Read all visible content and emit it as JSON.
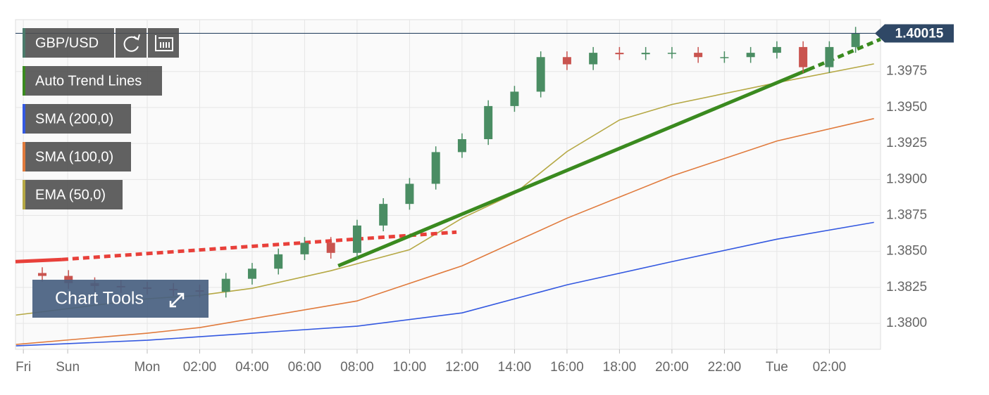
{
  "chart_data": {
    "type": "candlestick",
    "symbol": "GBP/USD",
    "tools_label": "Chart Tools",
    "x": [
      -4,
      -3,
      -2,
      -1,
      0,
      1,
      2,
      3,
      4,
      5,
      6,
      7,
      8,
      9,
      10,
      11,
      12,
      13,
      14,
      15,
      16,
      17,
      18,
      19,
      20,
      21,
      22,
      23,
      24,
      25,
      26,
      27
    ],
    "open": [
      1.3835,
      1.3833,
      1.3828,
      1.3826,
      1.3825,
      1.3824,
      1.3823,
      1.3822,
      1.3831,
      1.3838,
      1.3848,
      1.3856,
      1.3849,
      1.3868,
      1.3883,
      1.3897,
      1.3919,
      1.3928,
      1.3951,
      1.3961,
      1.3985,
      1.398,
      1.3988,
      1.3987,
      1.3988,
      1.3988,
      1.3985,
      1.3985,
      1.3988,
      1.3992,
      1.3978,
      1.3992
    ],
    "high": [
      1.3839,
      1.3837,
      1.3832,
      1.383,
      1.3829,
      1.3828,
      1.3827,
      1.3835,
      1.3842,
      1.3852,
      1.386,
      1.386,
      1.3872,
      1.3887,
      1.3901,
      1.3923,
      1.3932,
      1.3955,
      1.3965,
      1.3989,
      1.3989,
      1.3992,
      1.3992,
      1.3992,
      1.3992,
      1.3992,
      1.3989,
      1.3992,
      1.3996,
      1.3996,
      1.3996,
      1.4006
    ],
    "low": [
      1.3829,
      1.3824,
      1.3822,
      1.3821,
      1.382,
      1.3819,
      1.3818,
      1.3818,
      1.3827,
      1.3834,
      1.3844,
      1.3845,
      1.3845,
      1.3864,
      1.3879,
      1.3893,
      1.3915,
      1.3924,
      1.3947,
      1.3957,
      1.3976,
      1.3976,
      1.3983,
      1.3983,
      1.3984,
      1.3981,
      1.3981,
      1.3981,
      1.3984,
      1.3974,
      1.3974,
      1.3988
    ],
    "close": [
      1.3833,
      1.3828,
      1.3826,
      1.3825,
      1.3824,
      1.3823,
      1.3822,
      1.3831,
      1.3838,
      1.3848,
      1.3856,
      1.3849,
      1.3868,
      1.3883,
      1.3897,
      1.3919,
      1.3928,
      1.3951,
      1.3961,
      1.3985,
      1.398,
      1.3988,
      1.3987,
      1.3988,
      1.3988,
      1.3985,
      1.3985,
      1.3988,
      1.3992,
      1.3978,
      1.3992,
      1.40015
    ],
    "up_color": "#4a8d63",
    "down_color": "#c9544f",
    "last_price": 1.40015,
    "last_price_color": "#2f4866",
    "series": [
      {
        "name": "SMA (200,0)",
        "color": "#3358e0",
        "x": [
          -5,
          0,
          8,
          12,
          16,
          20,
          24,
          27.7
        ],
        "values": [
          1.37844,
          1.37883,
          1.37981,
          1.38073,
          1.38268,
          1.38429,
          1.38585,
          1.38702
        ]
      },
      {
        "name": "SMA (100,0)",
        "color": "#e07a3c",
        "x": [
          -5,
          0,
          2,
          8,
          12,
          16,
          20,
          24,
          27.7
        ],
        "values": [
          1.37854,
          1.37932,
          1.37971,
          1.38156,
          1.384,
          1.38731,
          1.39024,
          1.39267,
          1.39423
        ]
      },
      {
        "name": "EMA (50,0)",
        "color": "#b5a844",
        "x": [
          -5,
          0,
          2,
          4,
          7,
          10,
          12,
          14,
          16,
          18,
          20,
          24,
          27.7
        ],
        "values": [
          1.38058,
          1.38171,
          1.38195,
          1.38244,
          1.38366,
          1.38512,
          1.38731,
          1.38902,
          1.39194,
          1.39413,
          1.39521,
          1.39672,
          1.39803
        ]
      }
    ],
    "trend_lines": {
      "name": "Auto Trend Lines",
      "legend_color": "#3a8a1f",
      "segments": [
        {
          "color": "#e8403a",
          "dashed": false,
          "x": [
            -5.02,
            -3.25
          ],
          "values": [
            1.38429,
            1.38444
          ]
        },
        {
          "color": "#e8403a",
          "dashed": true,
          "x": [
            -3.25,
            11.79
          ],
          "values": [
            1.38444,
            1.38634
          ]
        },
        {
          "color": "#3a8a1f",
          "dashed": false,
          "x": [
            7.28,
            25.21
          ],
          "values": [
            1.384,
            1.39764
          ]
        },
        {
          "color": "#3a8a1f",
          "dashed": true,
          "x": [
            25.21,
            27.95
          ],
          "values": [
            1.39764,
            1.39974
          ]
        }
      ]
    },
    "xlim": [
      -5.02,
      27.95
    ],
    "xticks": [
      {
        "value": -4.72,
        "label": "Fri"
      },
      {
        "value": -3.03,
        "label": "Sun"
      },
      {
        "value": 0,
        "label": "Mon"
      },
      {
        "value": 2,
        "label": "02:00"
      },
      {
        "value": 4,
        "label": "04:00"
      },
      {
        "value": 6,
        "label": "06:00"
      },
      {
        "value": 8,
        "label": "08:00"
      },
      {
        "value": 10,
        "label": "10:00"
      },
      {
        "value": 12,
        "label": "12:00"
      },
      {
        "value": 14,
        "label": "14:00"
      },
      {
        "value": 16,
        "label": "16:00"
      },
      {
        "value": 18,
        "label": "18:00"
      },
      {
        "value": 20,
        "label": "20:00"
      },
      {
        "value": 22,
        "label": "22:00"
      },
      {
        "value": 24,
        "label": "Tue"
      },
      {
        "value": 26,
        "label": "02:00"
      }
    ],
    "ylim": [
      1.3782,
      1.4011
    ],
    "yticks": [
      {
        "value": 1.38,
        "label": "1.3800"
      },
      1.3825,
      {
        "value": 1.385,
        "label": "1.3850"
      },
      1.3875,
      {
        "value": 1.39,
        "label": "1.3900"
      },
      1.3925,
      {
        "value": 1.395,
        "label": "1.3950"
      },
      1.3975
    ],
    "grid": true
  }
}
